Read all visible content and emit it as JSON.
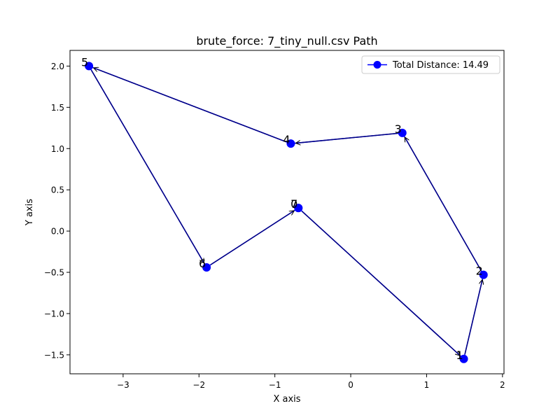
{
  "chart_data": {
    "type": "line",
    "title": "brute_force: 7_tiny_null.csv Path",
    "xlabel": "X axis",
    "ylabel": "Y axis",
    "xlim": [
      -3.7,
      2.02
    ],
    "ylim": [
      -1.73,
      2.19
    ],
    "xticks": [
      -3,
      -2,
      -1,
      0,
      1,
      2
    ],
    "xtick_labels": [
      "−3",
      "−2",
      "−1",
      "0",
      "1",
      "2"
    ],
    "yticks": [
      -1.5,
      -1.0,
      -0.5,
      0.0,
      0.5,
      1.0,
      1.5,
      2.0
    ],
    "ytick_labels": [
      "−1.5",
      "−1.0",
      "−0.5",
      "0.0",
      "0.5",
      "1.0",
      "1.5",
      "2.0"
    ],
    "grid": false,
    "legend": {
      "placement": "top-right",
      "entries": [
        "Total Distance: 14.49"
      ]
    },
    "series": [
      {
        "name": "Total Distance: 14.49",
        "color": "#0000ff",
        "arrow_color": "#000080",
        "points": [
          {
            "label": "0",
            "x": -0.69,
            "y": 0.28
          },
          {
            "label": "1",
            "x": 1.49,
            "y": -1.55
          },
          {
            "label": "2",
            "x": 1.75,
            "y": -0.53
          },
          {
            "label": "3",
            "x": 0.68,
            "y": 1.19
          },
          {
            "label": "4",
            "x": -0.79,
            "y": 1.06
          },
          {
            "label": "5",
            "x": -3.45,
            "y": 2.0
          },
          {
            "label": "6",
            "x": -1.9,
            "y": -0.44
          },
          {
            "label": "7",
            "x": -0.69,
            "y": 0.28
          }
        ]
      }
    ]
  }
}
